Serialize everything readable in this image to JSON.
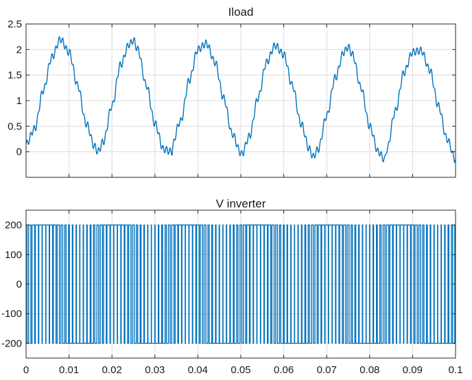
{
  "chart_data": [
    {
      "type": "line",
      "title": "Iload",
      "xlabel": "",
      "ylabel": "",
      "xlim": [
        0,
        0.1
      ],
      "ylim": [
        -0.5,
        2.5
      ],
      "xticks": [
        0,
        0.01,
        0.02,
        0.03,
        0.04,
        0.05,
        0.06,
        0.07,
        0.08,
        0.09,
        0.1
      ],
      "yticks": [
        0,
        0.5,
        1,
        1.5,
        2,
        2.5
      ],
      "ytick_labels": [
        "0",
        "0.5",
        "1",
        "1.5",
        "2",
        "2.5"
      ],
      "show_xtick_labels": false,
      "grid": true,
      "color": "#0072BD",
      "series": [
        {
          "x": [
            0,
            0.002,
            0.004,
            0.006,
            0.008,
            0.01,
            0.012,
            0.014,
            0.016,
            0.0167,
            0.018,
            0.02,
            0.022,
            0.024,
            0.025,
            0.026,
            0.028,
            0.03,
            0.032,
            0.034,
            0.0335,
            0.036,
            0.038,
            0.04,
            0.042,
            0.044,
            0.046,
            0.048,
            0.05,
            0.0502,
            0.052,
            0.054,
            0.056,
            0.058,
            0.06,
            0.062,
            0.064,
            0.066,
            0.0668,
            0.068,
            0.07,
            0.072,
            0.074,
            0.075,
            0.076,
            0.078,
            0.08,
            0.082,
            0.0835,
            0.084,
            0.086,
            0.088,
            0.09,
            0.092,
            0.094,
            0.096,
            0.098,
            0.1
          ],
          "y": [
            0.15,
            0.45,
            1.2,
            1.85,
            2.2,
            1.95,
            1.3,
            0.55,
            0.1,
            0.0,
            0.2,
            0.9,
            1.7,
            2.1,
            2.18,
            2.0,
            1.3,
            0.55,
            0.05,
            0.0,
            0.0,
            0.6,
            1.4,
            2.0,
            2.12,
            1.75,
            1.05,
            0.35,
            -0.02,
            -0.05,
            0.3,
            1.05,
            1.75,
            2.08,
            1.9,
            1.3,
            0.55,
            0.05,
            -0.1,
            0.05,
            0.7,
            1.45,
            1.95,
            2.05,
            1.9,
            1.25,
            0.5,
            0.0,
            -0.15,
            0.05,
            0.8,
            1.55,
            1.95,
            1.98,
            1.6,
            0.9,
            0.25,
            -0.15
          ]
        }
      ]
    },
    {
      "type": "line",
      "title": "V inverter",
      "xlabel": "",
      "ylabel": "",
      "xlim": [
        0,
        0.1
      ],
      "ylim": [
        -250,
        250
      ],
      "xticks": [
        0,
        0.01,
        0.02,
        0.03,
        0.04,
        0.05,
        0.06,
        0.07,
        0.08,
        0.09,
        0.1
      ],
      "xtick_labels": [
        "0",
        "0.01",
        "0.02",
        "0.03",
        "0.04",
        "0.05",
        "0.06",
        "0.07",
        "0.08",
        "0.09",
        "0.1"
      ],
      "yticks": [
        -200,
        -100,
        0,
        100,
        200
      ],
      "ytick_labels": [
        "-200",
        "-100",
        "0",
        "100",
        "200"
      ],
      "show_xtick_labels": true,
      "grid": true,
      "color": "#0072BD",
      "series": [
        {
          "waveform": "square, switching between the two levels",
          "levels": [
            -200,
            200
          ],
          "fundamental_hz": 60,
          "switching_hz": 1200
        }
      ]
    }
  ]
}
